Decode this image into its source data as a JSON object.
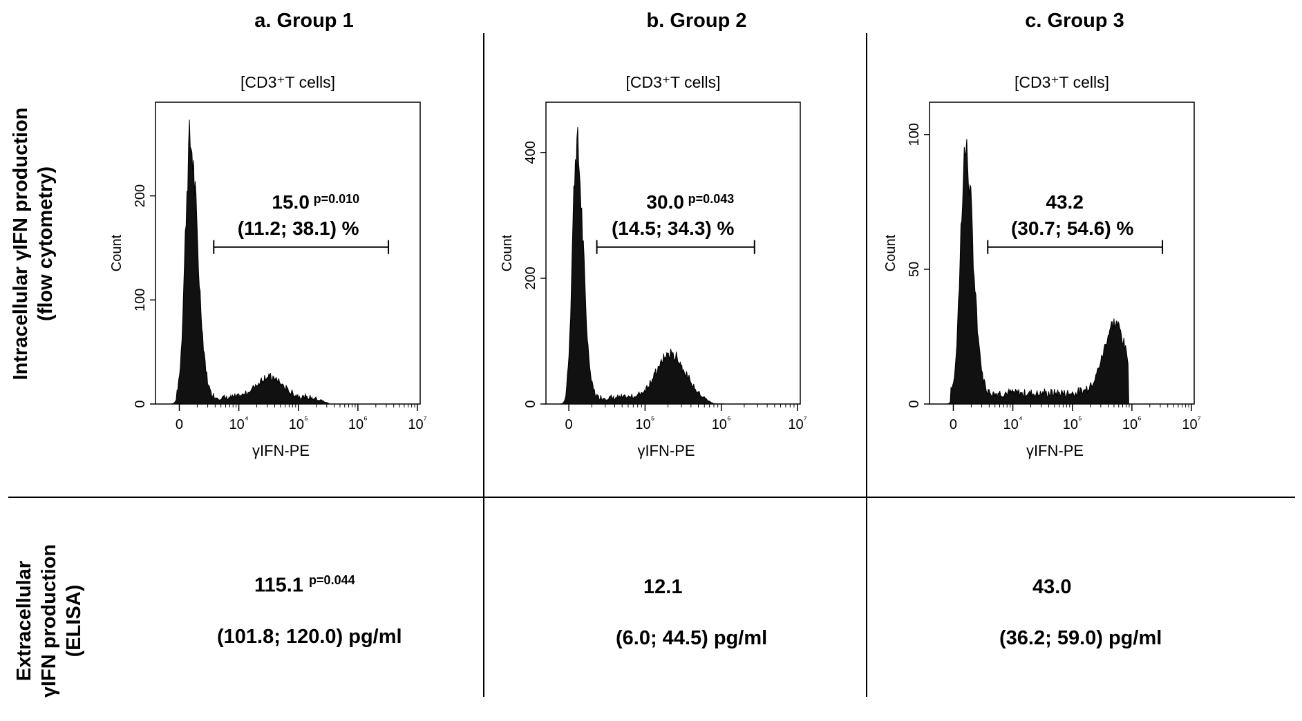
{
  "columns": [
    {
      "title": "a. Group 1"
    },
    {
      "title": "b. Group 2"
    },
    {
      "title": "c. Group 3"
    }
  ],
  "row_labels": {
    "intracellular": [
      "Intracellular γIFN production",
      "(flow cytometry)"
    ],
    "extracellular": [
      "Extracellular",
      "γIFN production",
      "(ELISA)"
    ]
  },
  "elisa": [
    {
      "value": "115.1",
      "p": "p=0.044",
      "range": "(101.8; 120.0) pg/ml"
    },
    {
      "value": "12.1",
      "p": "",
      "range": "(6.0; 44.5) pg/ml"
    },
    {
      "value": "43.0",
      "p": "",
      "range": "(36.2; 59.0) pg/ml"
    }
  ],
  "chart_data": [
    {
      "type": "area",
      "title": "[CD3⁺T cells]",
      "xlabel": "γIFN-PE",
      "ylabel": "Count",
      "ylim": [
        0,
        290
      ],
      "yticks": [
        0,
        100,
        200
      ],
      "xticks": [
        "0",
        "10⁴",
        "10⁵",
        "10⁶",
        "10⁷"
      ],
      "annotation": {
        "value": "15.0",
        "p": "p=0.010",
        "range": "(11.2; 38.1) %"
      },
      "peaks": [
        {
          "x": 0.13,
          "y": 245,
          "w": 0.018
        },
        {
          "x": 0.43,
          "y": 20,
          "w": 0.05
        }
      ],
      "baseline": 6,
      "gate": [
        0.22,
        0.88
      ]
    },
    {
      "type": "area",
      "title": "[CD3⁺T cells]",
      "xlabel": "γIFN-PE",
      "ylabel": "Count",
      "ylim": [
        0,
        480
      ],
      "yticks": [
        0,
        200,
        400
      ],
      "xticks": [
        "0",
        "10⁵",
        "10⁶",
        "10⁷"
      ],
      "annotation": {
        "value": "30.0",
        "p": "p=0.043",
        "range": "(14.5; 34.3) %"
      },
      "peaks": [
        {
          "x": 0.12,
          "y": 400,
          "w": 0.016
        },
        {
          "x": 0.49,
          "y": 70,
          "w": 0.055
        }
      ],
      "baseline": 10,
      "gate": [
        0.2,
        0.82
      ]
    },
    {
      "type": "area",
      "title": "[CD3⁺T cells]",
      "xlabel": "γIFN-PE",
      "ylabel": "Count",
      "ylim": [
        0,
        112
      ],
      "yticks": [
        0,
        50,
        100
      ],
      "xticks": [
        "0",
        "10⁴",
        "10⁵",
        "10⁶",
        "10⁷"
      ],
      "annotation": {
        "value": "43.2",
        "p": "",
        "range": "(30.7; 54.6) %"
      },
      "peaks": [
        {
          "x": 0.135,
          "y": 90,
          "w": 0.018
        },
        {
          "x": 0.7,
          "y": 30,
          "w": 0.045
        }
      ],
      "baseline": 4,
      "gate": [
        0.22,
        0.88
      ]
    }
  ]
}
